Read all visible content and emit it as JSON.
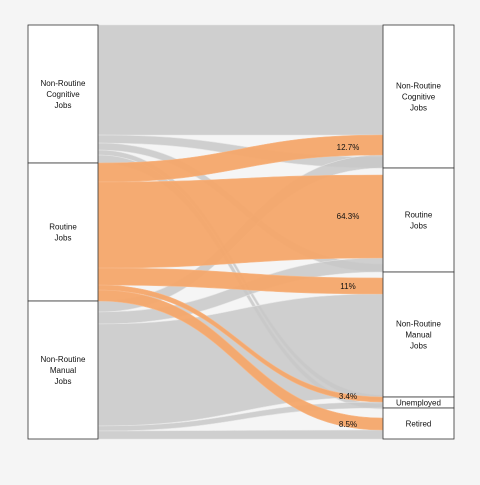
{
  "left_nodes": [
    {
      "id": "L_nrc",
      "lines": [
        "Non-Routine",
        "Cognitive",
        "Jobs"
      ]
    },
    {
      "id": "L_rt",
      "lines": [
        "Routine",
        "Jobs"
      ]
    },
    {
      "id": "L_nrm",
      "lines": [
        "Non-Routine",
        "Manual",
        "Jobs"
      ]
    }
  ],
  "right_nodes": [
    {
      "id": "R_nrc",
      "lines": [
        "Non-Routine",
        "Cognitive",
        "Jobs"
      ]
    },
    {
      "id": "R_rt",
      "lines": [
        "Routine",
        "Jobs"
      ]
    },
    {
      "id": "R_nrm",
      "lines": [
        "Non-Routine",
        "Manual",
        "Jobs"
      ]
    },
    {
      "id": "R_un",
      "lines": [
        "Unemployed"
      ]
    },
    {
      "id": "R_ret",
      "lines": [
        "Retired"
      ]
    }
  ],
  "flows": [
    {
      "from": "L_nrc",
      "to": "R_nrc",
      "highlight": false
    },
    {
      "from": "L_nrc",
      "to": "R_rt",
      "highlight": false
    },
    {
      "from": "L_nrc",
      "to": "R_nrm",
      "highlight": false
    },
    {
      "from": "L_nrc",
      "to": "R_un",
      "highlight": false
    },
    {
      "from": "L_nrc",
      "to": "R_ret",
      "highlight": false
    },
    {
      "from": "L_rt",
      "to": "R_nrc",
      "highlight": true,
      "percent_label": "12.7%"
    },
    {
      "from": "L_rt",
      "to": "R_rt",
      "highlight": true,
      "percent_label": "64.3%"
    },
    {
      "from": "L_rt",
      "to": "R_nrm",
      "highlight": true,
      "percent_label": "11%"
    },
    {
      "from": "L_rt",
      "to": "R_un",
      "highlight": true,
      "percent_label": "3.4%"
    },
    {
      "from": "L_rt",
      "to": "R_ret",
      "highlight": true,
      "percent_label": "8.5%"
    },
    {
      "from": "L_nrm",
      "to": "R_nrc",
      "highlight": false
    },
    {
      "from": "L_nrm",
      "to": "R_rt",
      "highlight": false
    },
    {
      "from": "L_nrm",
      "to": "R_nrm",
      "highlight": false
    },
    {
      "from": "L_nrm",
      "to": "R_un",
      "highlight": false
    },
    {
      "from": "L_nrm",
      "to": "R_ret",
      "highlight": false
    }
  ],
  "colors": {
    "highlight": "#f4a66a",
    "neutral": "#c8c8c8",
    "node_fill": "#ffffff",
    "node_stroke": "#333333",
    "background": "#f5f5f5"
  }
}
